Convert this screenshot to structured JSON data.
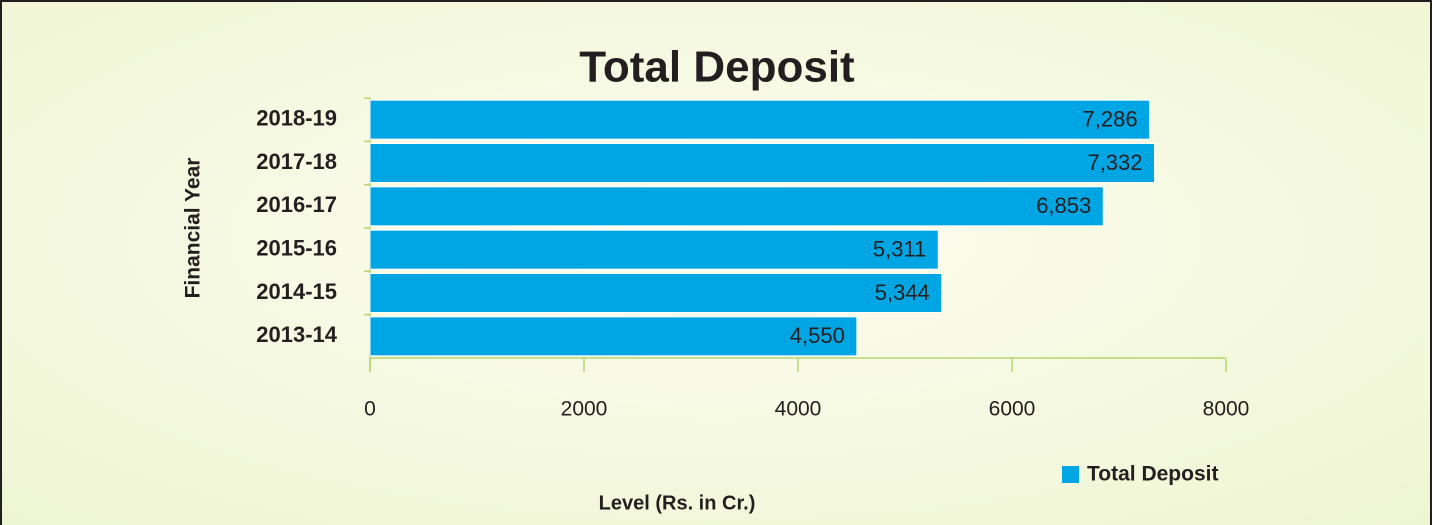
{
  "chart_data": {
    "type": "hbar",
    "title": "Total Deposit",
    "x_label": "Level (Rs. in Cr.)",
    "y_label": "Financial Year",
    "categories": [
      "2018-19",
      "2017-18",
      "2016-17",
      "2015-16",
      "2014-15",
      "2013-14"
    ],
    "series": [
      {
        "name": "Total Deposit",
        "color": "#00a6e4",
        "values": [
          7286,
          7332,
          6853,
          5311,
          5344,
          4550
        ],
        "value_labels": [
          "7,286",
          "7,332",
          "6,853",
          "5,311",
          "5,344",
          "4,550"
        ]
      }
    ],
    "xlim": [
      0,
      8000
    ],
    "xticks": [
      0,
      2000,
      4000,
      6000,
      8000
    ],
    "legend": "bottom-right"
  }
}
